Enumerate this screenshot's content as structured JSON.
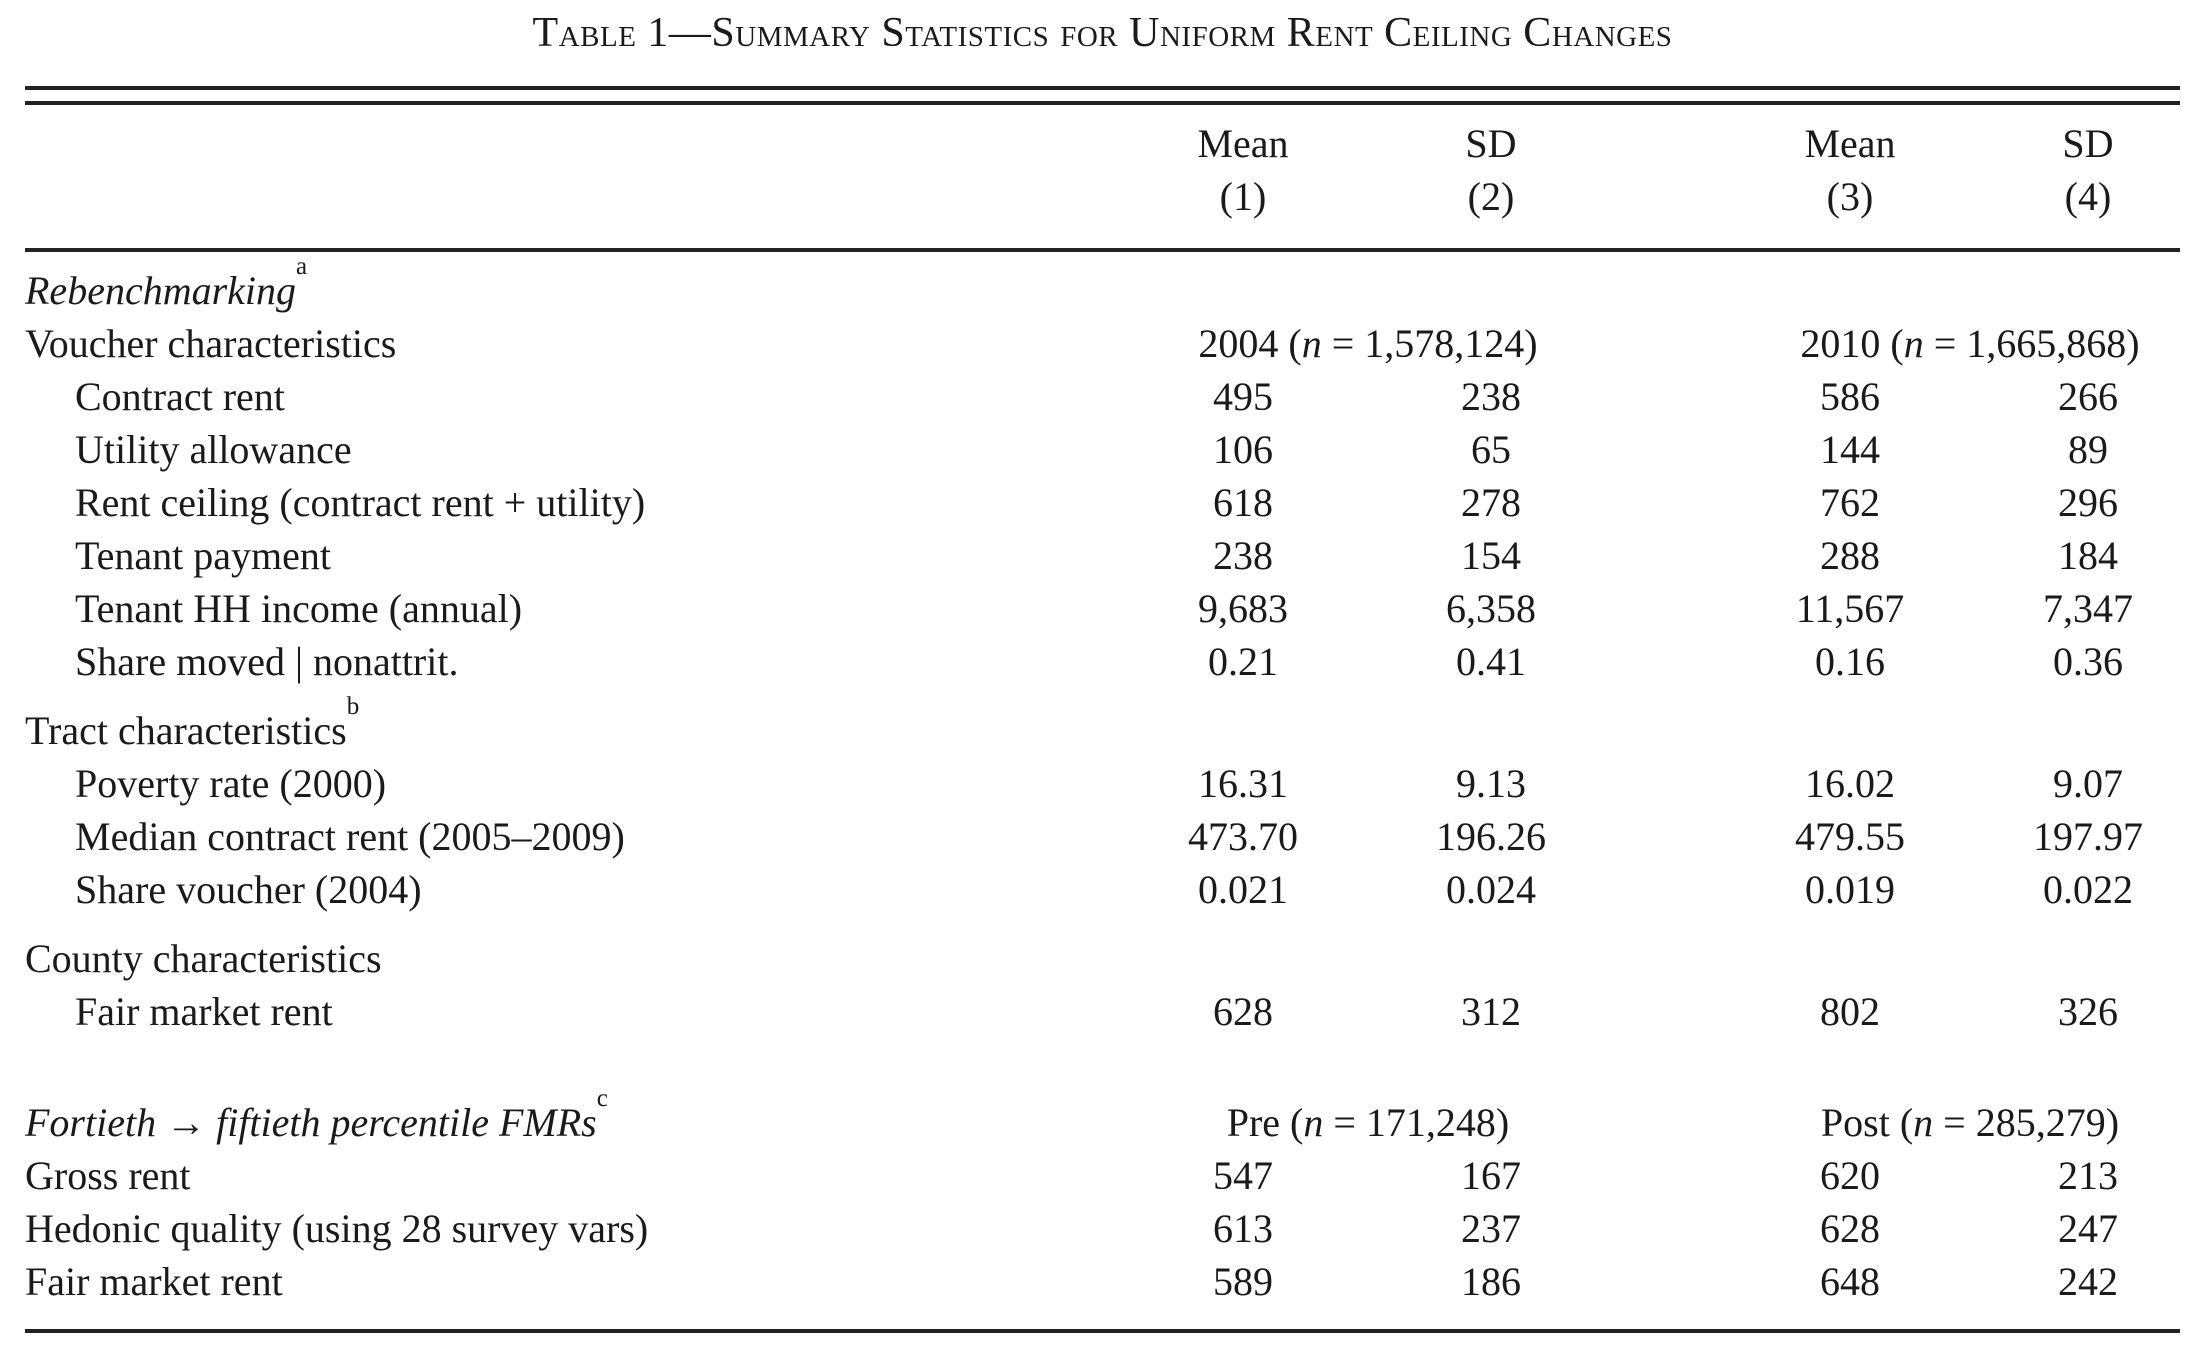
{
  "table": {
    "title": "Table 1—Summary Statistics for Uniform Rent Ceiling Changes",
    "columns": [
      {
        "line1": "Mean",
        "line2": "(1)"
      },
      {
        "line1": "SD",
        "line2": "(2)"
      },
      {
        "line1": "Mean",
        "line2": "(3)"
      },
      {
        "line1": "SD",
        "line2": "(4)"
      }
    ],
    "rows": [
      {
        "type": "section_italic",
        "label": "Rebenchmarking",
        "sup": "a"
      },
      {
        "type": "group",
        "label": "Voucher characteristics",
        "span12": {
          "prefix": "2004 (",
          "var": "n",
          "rest": " = 1,578,124)"
        },
        "span34": {
          "prefix": "2010 (",
          "var": "n",
          "rest": " = 1,665,868)"
        }
      },
      {
        "type": "data",
        "label": "Contract rent",
        "values": [
          "495",
          "238",
          "586",
          "266"
        ]
      },
      {
        "type": "data",
        "label": "Utility allowance",
        "values": [
          "106",
          "65",
          "144",
          "89"
        ]
      },
      {
        "type": "data",
        "label": "Rent ceiling (contract rent + utility)",
        "values": [
          "618",
          "278",
          "762",
          "296"
        ]
      },
      {
        "type": "data",
        "label": "Tenant payment",
        "values": [
          "238",
          "154",
          "288",
          "184"
        ]
      },
      {
        "type": "data",
        "label": "Tenant HH income (annual)",
        "values": [
          "9,683",
          "6,358",
          "11,567",
          "7,347"
        ]
      },
      {
        "type": "data",
        "label": "Share moved | nonattrit.",
        "values": [
          "0.21",
          "0.41",
          "0.16",
          "0.36"
        ]
      },
      {
        "type": "section",
        "label": "Tract characteristics",
        "sup": "b"
      },
      {
        "type": "data",
        "label": "Poverty rate (2000)",
        "values": [
          "16.31",
          "9.13",
          "16.02",
          "9.07"
        ]
      },
      {
        "type": "data",
        "label": "Median contract rent (2005–2009)",
        "values": [
          "473.70",
          "196.26",
          "479.55",
          "197.97"
        ]
      },
      {
        "type": "data",
        "label": "Share voucher (2004)",
        "values": [
          "0.021",
          "0.024",
          "0.019",
          "0.022"
        ]
      },
      {
        "type": "section",
        "label": "County characteristics"
      },
      {
        "type": "data",
        "label": "Fair market rent",
        "values": [
          "628",
          "312",
          "802",
          "326"
        ]
      },
      {
        "type": "section_italic_group",
        "label": "Fortieth → fiftieth percentile FMRs",
        "sup": "c",
        "span12": {
          "prefix": "Pre (",
          "var": "n",
          "rest": " = 171,248)"
        },
        "span34": {
          "prefix": "Post (",
          "var": "n",
          "rest": " = 285,279)"
        }
      },
      {
        "type": "data_flush",
        "label": "Gross rent",
        "values": [
          "547",
          "167",
          "620",
          "213"
        ]
      },
      {
        "type": "data_flush",
        "label": "Hedonic quality (using 28 survey vars)",
        "values": [
          "613",
          "237",
          "628",
          "247"
        ]
      },
      {
        "type": "data_flush",
        "label": "Fair market rent",
        "values": [
          "589",
          "186",
          "648",
          "242"
        ]
      }
    ]
  }
}
